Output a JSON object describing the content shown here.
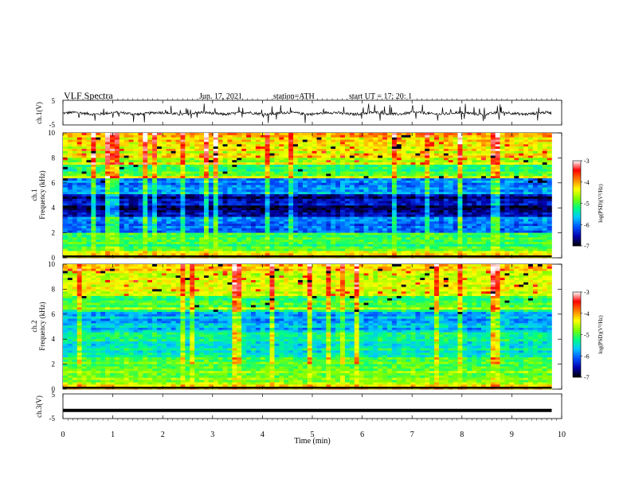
{
  "header": {
    "title": "VLF  Spectra",
    "date": "Jun. 17, 2021",
    "station": "station=ATH",
    "start": "start  UT  =   17: 20: 1"
  },
  "chart_data": {
    "type": "heatmap",
    "xlabel": "Time  (min)",
    "xlim": [
      0,
      10
    ],
    "x_ticks": [
      "0",
      "1",
      "2",
      "3",
      "4",
      "5",
      "6",
      "7",
      "8",
      "9",
      "10"
    ],
    "panels": [
      {
        "id": "ch1-waveform",
        "type": "line",
        "ylabel": "ch.1(V)",
        "ylim": [
          -5,
          5
        ],
        "y_ticks": [
          "5",
          "-5"
        ],
        "trace_end_min": 9.8
      },
      {
        "id": "ch1-spectrogram",
        "type": "heatmap",
        "ylabel": "ch.1\nFrequency  (kHz)",
        "ylim": [
          0,
          10
        ],
        "y_ticks": [
          "10",
          "8",
          "6",
          "4",
          "2",
          "0"
        ],
        "data_end_min": 9.8
      },
      {
        "id": "ch2-spectrogram",
        "type": "heatmap",
        "ylabel": "ch.2\nFrequency  (kHz)",
        "ylim": [
          0,
          10
        ],
        "y_ticks": [
          "10",
          "8",
          "6",
          "4",
          "2",
          "0"
        ],
        "data_end_min": 9.8
      },
      {
        "id": "ch3-waveform",
        "type": "line",
        "ylabel": "ch.3(V)",
        "ylim": [
          -5,
          5
        ],
        "y_ticks": [
          "5",
          "-5"
        ],
        "trace_level": -1.7,
        "trace_end_min": 9.8
      }
    ],
    "colorbar": {
      "label": "log(PSD)(V²/Hz)",
      "range": [
        -7,
        -3
      ],
      "ticks": [
        "-3",
        "-4",
        "-5",
        "-6",
        "-7"
      ],
      "colors": [
        "#000000",
        "#0000aa",
        "#0050ff",
        "#00c8ff",
        "#00ff80",
        "#80ff00",
        "#ffff00",
        "#ff8000",
        "#ff0000",
        "#ffffff"
      ]
    }
  }
}
